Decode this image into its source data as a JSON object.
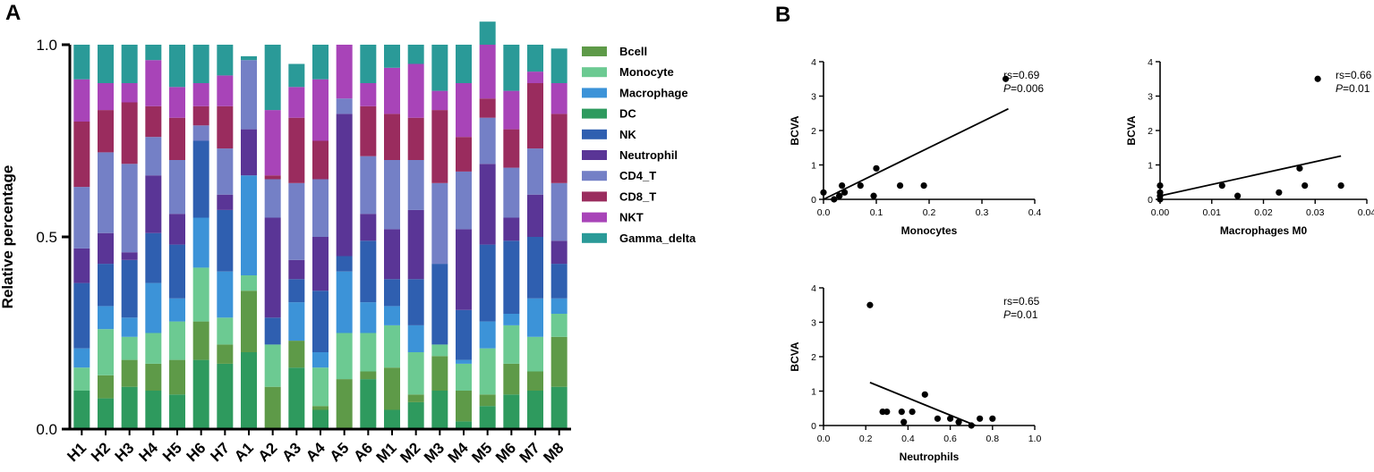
{
  "panel_labels": {
    "a": "A",
    "b": "B"
  },
  "chart_data": [
    {
      "type": "bar",
      "stacked": true,
      "title": "",
      "xlabel": "",
      "ylabel": "Relative percentage",
      "ylim": [
        0,
        1.0
      ],
      "yticks": [
        "0.0",
        "0.5",
        "1.0"
      ],
      "categories": [
        "H1",
        "H2",
        "H3",
        "H4",
        "H5",
        "H6",
        "H7",
        "A1",
        "A2",
        "A3",
        "A4",
        "A5",
        "A6",
        "M1",
        "M2",
        "M3",
        "M4",
        "M5",
        "M6",
        "M7",
        "M8"
      ],
      "series": [
        {
          "name": "DC",
          "color": "#2e9a5e",
          "values": [
            0.1,
            0.08,
            0.11,
            0.1,
            0.09,
            0.18,
            0.17,
            0.2,
            0.0,
            0.16,
            0.05,
            0.0,
            0.13,
            0.05,
            0.07,
            0.1,
            0.02,
            0.06,
            0.09,
            0.1,
            0.11
          ]
        },
        {
          "name": "Bcell",
          "color": "#5e9a48",
          "values": [
            0.0,
            0.06,
            0.07,
            0.07,
            0.09,
            0.1,
            0.05,
            0.16,
            0.11,
            0.07,
            0.01,
            0.13,
            0.02,
            0.11,
            0.02,
            0.09,
            0.08,
            0.03,
            0.08,
            0.05,
            0.13
          ]
        },
        {
          "name": "Monocyte",
          "color": "#6cca92",
          "values": [
            0.06,
            0.12,
            0.06,
            0.08,
            0.1,
            0.14,
            0.07,
            0.04,
            0.11,
            0.0,
            0.1,
            0.12,
            0.1,
            0.11,
            0.11,
            0.03,
            0.07,
            0.12,
            0.1,
            0.09,
            0.06
          ]
        },
        {
          "name": "Macrophage",
          "color": "#3c93d8",
          "values": [
            0.05,
            0.06,
            0.05,
            0.13,
            0.06,
            0.13,
            0.12,
            0.26,
            0.0,
            0.1,
            0.04,
            0.16,
            0.08,
            0.05,
            0.07,
            0.0,
            0.01,
            0.07,
            0.03,
            0.1,
            0.04
          ]
        },
        {
          "name": "NK",
          "color": "#2f5fb0",
          "values": [
            0.17,
            0.11,
            0.15,
            0.13,
            0.14,
            0.2,
            0.16,
            0.0,
            0.07,
            0.06,
            0.16,
            0.04,
            0.16,
            0.07,
            0.12,
            0.21,
            0.13,
            0.2,
            0.19,
            0.16,
            0.09
          ]
        },
        {
          "name": "Neutrophil",
          "color": "#5a3596",
          "values": [
            0.09,
            0.08,
            0.02,
            0.15,
            0.08,
            0.0,
            0.04,
            0.12,
            0.26,
            0.05,
            0.14,
            0.37,
            0.07,
            0.13,
            0.18,
            0.0,
            0.21,
            0.21,
            0.06,
            0.11,
            0.06
          ]
        },
        {
          "name": "CD4_T",
          "color": "#7480c6",
          "values": [
            0.16,
            0.21,
            0.23,
            0.1,
            0.14,
            0.04,
            0.12,
            0.18,
            0.1,
            0.2,
            0.15,
            0.04,
            0.15,
            0.18,
            0.13,
            0.21,
            0.15,
            0.12,
            0.13,
            0.12,
            0.15
          ]
        },
        {
          "name": "CD8_T",
          "color": "#9a2c5e",
          "values": [
            0.17,
            0.11,
            0.16,
            0.08,
            0.11,
            0.05,
            0.11,
            0.0,
            0.01,
            0.17,
            0.1,
            0.0,
            0.13,
            0.12,
            0.11,
            0.19,
            0.09,
            0.05,
            0.1,
            0.17,
            0.18
          ]
        },
        {
          "name": "NKT",
          "color": "#a844b8",
          "values": [
            0.11,
            0.07,
            0.05,
            0.12,
            0.08,
            0.06,
            0.08,
            0.0,
            0.17,
            0.08,
            0.16,
            0.14,
            0.06,
            0.12,
            0.14,
            0.05,
            0.14,
            0.14,
            0.1,
            0.03,
            0.08
          ]
        },
        {
          "name": "Gamma_delta",
          "color": "#2a9a98",
          "values": [
            0.09,
            0.1,
            0.1,
            0.04,
            0.11,
            0.1,
            0.08,
            0.01,
            0.17,
            0.06,
            0.09,
            0.0,
            0.1,
            0.06,
            0.05,
            0.12,
            0.1,
            0.06,
            0.12,
            0.07,
            0.09
          ]
        }
      ],
      "legend": [
        "Bcell",
        "Monocyte",
        "Macrophage",
        "DC",
        "NK",
        "Neutrophil",
        "CD4_T",
        "CD8_T",
        "NKT",
        "Gamma_delta"
      ]
    },
    {
      "type": "scatter",
      "xlabel": "Monocytes",
      "ylabel": "BCVA",
      "xlim": [
        0,
        0.4
      ],
      "ylim": [
        0,
        4
      ],
      "xticks": [
        "0.0",
        "0.1",
        "0.2",
        "0.3",
        "0.4"
      ],
      "yticks": [
        "0",
        "1",
        "2",
        "3",
        "4"
      ],
      "stat_rs": "rs=0.69",
      "stat_p_label": "P",
      "stat_p_value": "=0.006",
      "points": [
        [
          0.0,
          0.2
        ],
        [
          0.02,
          0.0
        ],
        [
          0.03,
          0.1
        ],
        [
          0.03,
          0.1
        ],
        [
          0.035,
          0.4
        ],
        [
          0.04,
          0.2
        ],
        [
          0.07,
          0.4
        ],
        [
          0.095,
          0.1
        ],
        [
          0.1,
          0.9
        ],
        [
          0.145,
          0.4
        ],
        [
          0.19,
          0.4
        ],
        [
          0.345,
          3.5
        ]
      ],
      "fit_line": [
        [
          0.0,
          0.0
        ],
        [
          0.35,
          2.63
        ]
      ]
    },
    {
      "type": "scatter",
      "xlabel": "Macrophages M0",
      "ylabel": "BCVA",
      "xlim": [
        0,
        0.04
      ],
      "ylim": [
        0,
        4
      ],
      "xticks": [
        "0.00",
        "0.01",
        "0.02",
        "0.03",
        "0.04"
      ],
      "yticks": [
        "0",
        "1",
        "2",
        "3",
        "4"
      ],
      "stat_rs": "rs=0.66",
      "stat_p_label": "P",
      "stat_p_value": "=0.01",
      "points": [
        [
          0.0,
          0.0
        ],
        [
          0.0,
          0.1
        ],
        [
          0.0,
          0.2
        ],
        [
          0.0,
          0.4
        ],
        [
          0.012,
          0.4
        ],
        [
          0.015,
          0.1
        ],
        [
          0.023,
          0.2
        ],
        [
          0.027,
          0.9
        ],
        [
          0.028,
          0.4
        ],
        [
          0.0305,
          3.5
        ],
        [
          0.035,
          0.4
        ]
      ],
      "fit_line": [
        [
          0.0,
          0.1
        ],
        [
          0.035,
          1.26
        ]
      ]
    },
    {
      "type": "scatter",
      "xlabel": "Neutrophils",
      "ylabel": "BCVA",
      "xlim": [
        0,
        1.0
      ],
      "ylim": [
        0,
        4
      ],
      "xticks": [
        "0.0",
        "0.2",
        "0.4",
        "0.6",
        "0.8",
        "1.0"
      ],
      "yticks": [
        "0",
        "1",
        "2",
        "3",
        "4"
      ],
      "stat_rs": "rs=0.65",
      "stat_p_label": "P",
      "stat_p_value": "=0.01",
      "points": [
        [
          0.22,
          3.5
        ],
        [
          0.28,
          0.4
        ],
        [
          0.3,
          0.4
        ],
        [
          0.37,
          0.4
        ],
        [
          0.38,
          0.1
        ],
        [
          0.42,
          0.4
        ],
        [
          0.48,
          0.9
        ],
        [
          0.54,
          0.2
        ],
        [
          0.6,
          0.2
        ],
        [
          0.64,
          0.1
        ],
        [
          0.7,
          0.0
        ],
        [
          0.74,
          0.2
        ],
        [
          0.8,
          0.2
        ]
      ],
      "fit_line": [
        [
          0.22,
          1.25
        ],
        [
          0.72,
          0.0
        ]
      ]
    }
  ]
}
